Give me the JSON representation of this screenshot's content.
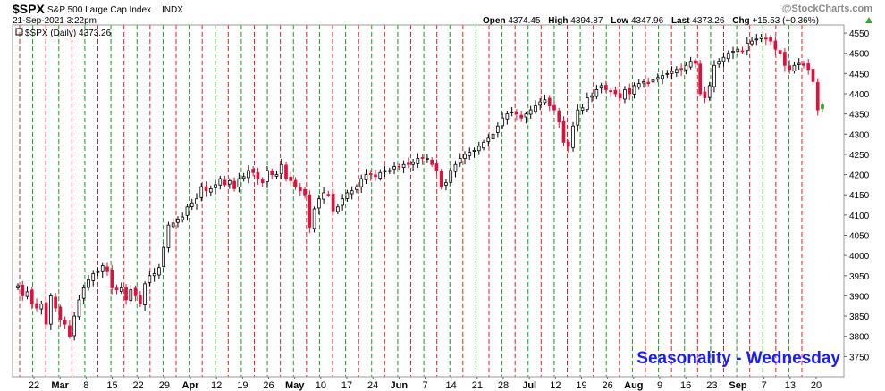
{
  "header": {
    "symbol": "$SPX",
    "name": "S&P 500 Large Cap Index",
    "exchange": "INDX",
    "brand": "@StockCharts.com",
    "datetime": "21-Sep-2021 3:22pm",
    "open_label": "Open",
    "open": "4374.45",
    "high_label": "High",
    "high": "4394.87",
    "low_label": "Low",
    "low": "4347.96",
    "last_label": "Last",
    "last": "4373.26",
    "chg_label": "Chg",
    "chg": "+15.53 (+0.36%)",
    "chg_icon": "up-triangle-icon"
  },
  "legend": {
    "text": "$SPX (Daily) 4373.26"
  },
  "annotation": {
    "text": "Seasonality - Wednesday",
    "color": "#1a1aff"
  },
  "colors": {
    "up_candle_fill": "#ffffff",
    "up_candle_stroke": "#000000",
    "down_candle": "#e0103c",
    "last_candle": "#33aa33",
    "red_line": "#e02020",
    "green_line": "#1a9a1a",
    "axis_text": "#000000"
  },
  "chart_data": {
    "type": "candlestick",
    "y_axis": {
      "min": 3700,
      "max": 4570,
      "ticks": [
        3750,
        3800,
        3850,
        3900,
        3950,
        4000,
        4050,
        4100,
        4150,
        4200,
        4250,
        4300,
        4350,
        4400,
        4450,
        4500,
        4550
      ],
      "side": "right"
    },
    "x_labels": [
      "22",
      "Mar",
      "8",
      "15",
      "22",
      "29",
      "Apr",
      "12",
      "19",
      "26",
      "May",
      "10",
      "17",
      "24",
      "Jun",
      "7",
      "14",
      "21",
      "28",
      "Jul",
      "12",
      "19",
      "26",
      "Aug",
      "9",
      "16",
      "23",
      "Sep",
      "7",
      "13",
      "20"
    ],
    "x_label_bold": [
      "Mar",
      "Apr",
      "May",
      "Jun",
      "Jul",
      "Aug",
      "Sep"
    ],
    "vertical_lines": "red dashed line = Monday (week start), green dashed line = Wednesday",
    "closes": [
      3925,
      3900,
      3910,
      3880,
      3870,
      3880,
      3830,
      3900,
      3870,
      3840,
      3830,
      3800,
      3850,
      3890,
      3920,
      3940,
      3955,
      3960,
      3975,
      3960,
      3920,
      3915,
      3920,
      3890,
      3915,
      3900,
      3880,
      3930,
      3950,
      3955,
      3970,
      4020,
      4075,
      4080,
      4090,
      4095,
      4120,
      4130,
      4140,
      4170,
      4160,
      4165,
      4175,
      4190,
      4175,
      4185,
      4165,
      4190,
      4195,
      4210,
      4205,
      4190,
      4180,
      4210,
      4200,
      4200,
      4225,
      4190,
      4185,
      4170,
      4160,
      4150,
      4070,
      4115,
      4140,
      4155,
      4150,
      4110,
      4120,
      4140,
      4155,
      4160,
      4170,
      4190,
      4200,
      4200,
      4195,
      4205,
      4210,
      4210,
      4220,
      4220,
      4225,
      4225,
      4230,
      4240,
      4240,
      4240,
      4225,
      4210,
      4170,
      4180,
      4210,
      4225,
      4240,
      4250,
      4255,
      4260,
      4270,
      4280,
      4290,
      4300,
      4320,
      4340,
      4350,
      4355,
      4350,
      4340,
      4350,
      4360,
      4370,
      4380,
      4385,
      4370,
      4360,
      4330,
      4280,
      4270,
      4320,
      4360,
      4365,
      4390,
      4395,
      4410,
      4420,
      4410,
      4405,
      4400,
      4390,
      4410,
      4400,
      4420,
      4425,
      4430,
      4425,
      4435,
      4440,
      4445,
      4450,
      4455,
      4460,
      4460,
      4470,
      4480,
      4475,
      4400,
      4390,
      4420,
      4470,
      4480,
      4490,
      4500,
      4505,
      4510,
      4505,
      4525,
      4530,
      4535,
      4540,
      4535,
      4530,
      4510,
      4500,
      4470,
      4460,
      4470,
      4475,
      4470,
      4460,
      4430,
      4360,
      4373
    ]
  }
}
